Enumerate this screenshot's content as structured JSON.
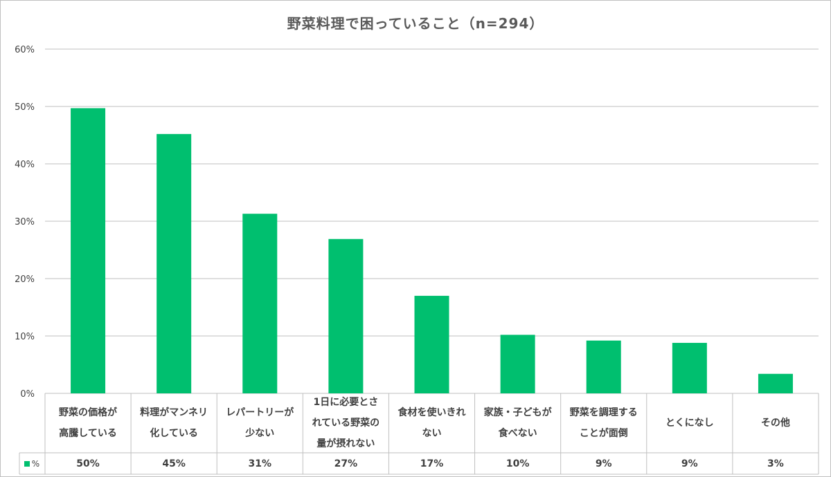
{
  "chart_data": {
    "type": "bar",
    "title": "野菜料理で困っていること（n=294）",
    "categories": [
      "野菜の価格が\n高騰している",
      "料理がマンネリ\n化している",
      "レパートリーが\n少ない",
      "1日に必要とさ\nれている野菜の\n量が摂れない",
      "食材を使いきれ\nない",
      "家族・子どもが\n食べない",
      "野菜を調理する\nことが面倒",
      "とくになし",
      "その他"
    ],
    "series": [
      {
        "name": "%",
        "values": [
          49.7,
          45.2,
          31.3,
          26.9,
          17.0,
          10.2,
          9.2,
          8.8,
          3.4
        ],
        "labels": [
          "50%",
          "45%",
          "31%",
          "27%",
          "17%",
          "10%",
          "9%",
          "9%",
          "3%"
        ]
      }
    ],
    "ylim": [
      0,
      60
    ],
    "yticks": [
      "0%",
      "10%",
      "20%",
      "30%",
      "40%",
      "50%",
      "60%"
    ],
    "grid": true,
    "legend": "data-table-left",
    "color": "#00bf6f"
  }
}
